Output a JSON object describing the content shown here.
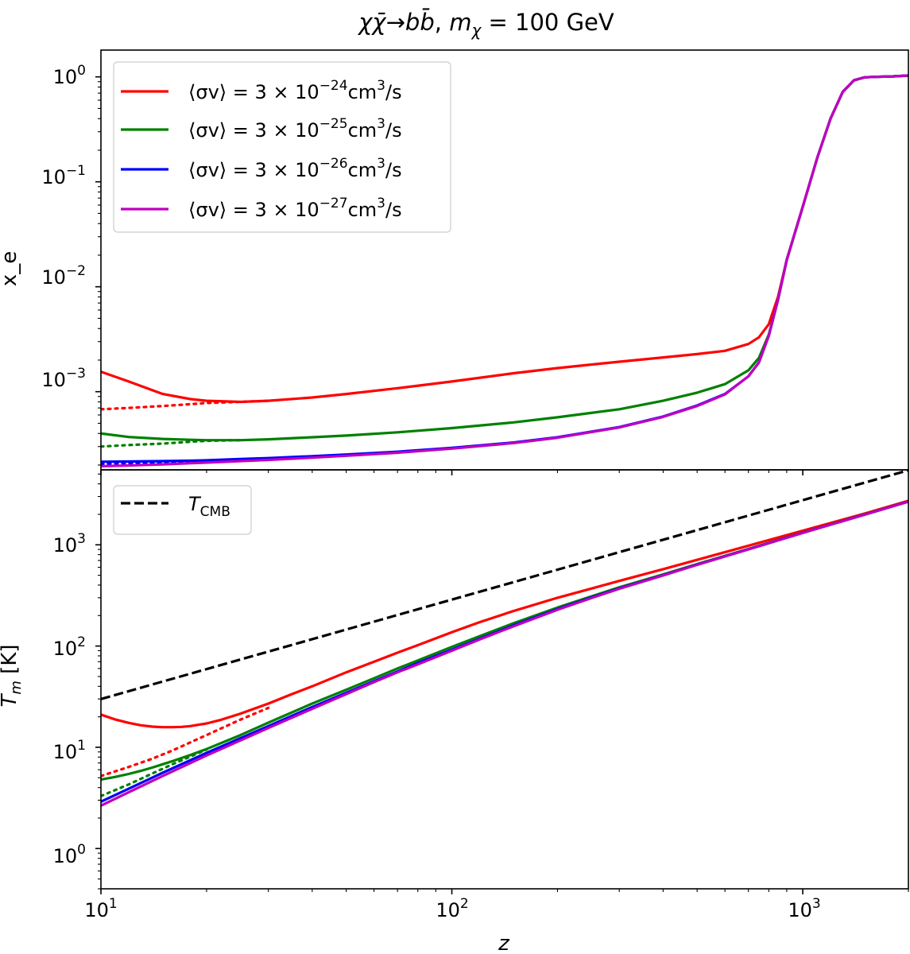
{
  "figure": {
    "title_parts": [
      "χ",
      "χ̄",
      "→",
      "b",
      "b̄",
      ", ",
      "m",
      "χ",
      " = 100 GeV"
    ]
  },
  "chart_data": [
    {
      "type": "line",
      "panel": "top",
      "xscale": "log",
      "yscale": "log",
      "xlim": [
        10,
        2000
      ],
      "ylim": [
        0.00018,
        1.8
      ],
      "ylabel": "x_e",
      "yticks": [
        0.001,
        0.01,
        0.1,
        1
      ],
      "ytick_labels": [
        {
          "base": "10",
          "exp": "−3"
        },
        {
          "base": "10",
          "exp": "−2"
        },
        {
          "base": "10",
          "exp": "−1"
        },
        {
          "base": "10",
          "exp": "0"
        }
      ],
      "legend": {
        "position": "top-left",
        "entries": [
          {
            "color": "#ff0000",
            "prefix": "⟨σv⟩ = 3 × 10",
            "exp": "−24",
            "unit": "cm",
            "unit_exp": "3",
            "suffix": "/s"
          },
          {
            "color": "#008000",
            "prefix": "⟨σv⟩ = 3 × 10",
            "exp": "−25",
            "unit": "cm",
            "unit_exp": "3",
            "suffix": "/s"
          },
          {
            "color": "#0000ff",
            "prefix": "⟨σv⟩ = 3 × 10",
            "exp": "−26",
            "unit": "cm",
            "unit_exp": "3",
            "suffix": "/s"
          },
          {
            "color": "#bf00bf",
            "prefix": "⟨σv⟩ = 3 × 10",
            "exp": "−27",
            "unit": "cm",
            "unit_exp": "3",
            "suffix": "/s"
          }
        ]
      },
      "series": [
        {
          "color": "#ff0000",
          "style": "solid",
          "x": [
            10,
            12,
            15,
            18,
            20,
            25,
            30,
            40,
            50,
            70,
            100,
            150,
            200,
            300,
            400,
            500,
            600,
            700,
            750,
            800,
            850,
            900,
            1000,
            1100,
            1200,
            1300,
            1400,
            1500,
            1600,
            1800,
            2000
          ],
          "y": [
            0.00155,
            0.00125,
            0.00095,
            0.00085,
            0.00082,
            0.0008,
            0.00082,
            0.00088,
            0.00095,
            0.00108,
            0.00125,
            0.0015,
            0.00168,
            0.00193,
            0.00212,
            0.00228,
            0.00245,
            0.00285,
            0.0033,
            0.0044,
            0.008,
            0.018,
            0.058,
            0.17,
            0.4,
            0.72,
            0.93,
            0.99,
            1.0,
            1.01,
            1.03
          ]
        },
        {
          "color": "#ff0000",
          "style": "dotted",
          "x": [
            10,
            12,
            15,
            18,
            20,
            25,
            30
          ],
          "y": [
            0.00068,
            0.0007,
            0.00073,
            0.00076,
            0.00078,
            0.0008,
            0.00082
          ]
        },
        {
          "color": "#008000",
          "style": "solid",
          "x": [
            10,
            12,
            15,
            18,
            20,
            25,
            30,
            40,
            50,
            70,
            100,
            150,
            200,
            300,
            400,
            500,
            600,
            700,
            750,
            800,
            850,
            900,
            1000,
            1100,
            1200,
            1300,
            1400,
            1500,
            1600,
            1800,
            2000
          ],
          "y": [
            0.0004,
            0.00037,
            0.000355,
            0.000348,
            0.000345,
            0.000345,
            0.000352,
            0.000368,
            0.000382,
            0.00041,
            0.00045,
            0.00051,
            0.00057,
            0.00068,
            0.00082,
            0.00098,
            0.00118,
            0.0016,
            0.0021,
            0.0035,
            0.0075,
            0.018,
            0.058,
            0.17,
            0.4,
            0.72,
            0.93,
            0.99,
            1.0,
            1.01,
            1.03
          ]
        },
        {
          "color": "#008000",
          "style": "dotted",
          "x": [
            10,
            12,
            15,
            18,
            20,
            25
          ],
          "y": [
            0.0003,
            0.00031,
            0.00032,
            0.000333,
            0.00034,
            0.000345
          ]
        },
        {
          "color": "#0000ff",
          "style": "solid",
          "x": [
            10,
            12,
            15,
            18,
            20,
            25,
            30,
            40,
            50,
            70,
            100,
            150,
            200,
            300,
            400,
            500,
            600,
            700,
            750,
            800,
            850,
            900,
            1000,
            1100,
            1200,
            1300,
            1400,
            1500,
            1600,
            1800,
            2000
          ],
          "y": [
            0.000215,
            0.000216,
            0.000218,
            0.00022,
            0.000222,
            0.000228,
            0.000233,
            0.000243,
            0.000252,
            0.000268,
            0.000292,
            0.000328,
            0.000368,
            0.00046,
            0.00058,
            0.00074,
            0.00095,
            0.0014,
            0.0019,
            0.0034,
            0.0075,
            0.018,
            0.058,
            0.17,
            0.4,
            0.72,
            0.93,
            0.99,
            1.0,
            1.01,
            1.03
          ]
        },
        {
          "color": "#0000ff",
          "style": "dotted",
          "x": [
            10,
            12,
            15,
            18,
            20
          ],
          "y": [
            0.000205,
            0.000208,
            0.000212,
            0.000216,
            0.000218
          ]
        },
        {
          "color": "#bf00bf",
          "style": "solid",
          "x": [
            10,
            12,
            15,
            18,
            20,
            25,
            30,
            40,
            50,
            70,
            100,
            150,
            200,
            300,
            400,
            500,
            600,
            700,
            750,
            800,
            850,
            900,
            1000,
            1100,
            1200,
            1300,
            1400,
            1500,
            1600,
            1800,
            2000
          ],
          "y": [
            0.000195,
            0.000198,
            0.000203,
            0.000208,
            0.000211,
            0.000218,
            0.000224,
            0.000235,
            0.000245,
            0.000262,
            0.000287,
            0.000324,
            0.000364,
            0.000456,
            0.000575,
            0.00073,
            0.00094,
            0.0014,
            0.0019,
            0.0034,
            0.0075,
            0.018,
            0.058,
            0.17,
            0.4,
            0.72,
            0.93,
            0.99,
            1.0,
            1.01,
            1.03
          ]
        }
      ]
    },
    {
      "type": "line",
      "panel": "bottom",
      "xscale": "log",
      "yscale": "log",
      "xlim": [
        10,
        2000
      ],
      "ylim": [
        0.4,
        5500
      ],
      "xlabel": "z",
      "ylabel_main": "T",
      "ylabel_sub": "m",
      "ylabel_unit": " [K]",
      "xticks": [
        10,
        100,
        1000
      ],
      "xtick_labels": [
        {
          "base": "10",
          "exp": "1"
        },
        {
          "base": "10",
          "exp": "2"
        },
        {
          "base": "10",
          "exp": "3"
        }
      ],
      "yticks": [
        1,
        10,
        100,
        1000
      ],
      "ytick_labels": [
        {
          "base": "10",
          "exp": "0"
        },
        {
          "base": "10",
          "exp": "1"
        },
        {
          "base": "10",
          "exp": "2"
        },
        {
          "base": "10",
          "exp": "3"
        }
      ],
      "legend": {
        "position": "top-left",
        "entries": [
          {
            "color": "#000000",
            "style": "dashed",
            "main": "T",
            "sub": "CMB"
          }
        ]
      },
      "series": [
        {
          "color": "#000000",
          "style": "dashed",
          "name": "T_CMB",
          "x": [
            10,
            2000
          ],
          "y": [
            29.98,
            5452.5
          ]
        },
        {
          "color": "#ff0000",
          "style": "solid",
          "x": [
            10,
            11,
            12,
            13,
            14,
            15,
            16,
            17,
            18,
            20,
            22,
            25,
            30,
            35,
            40,
            50,
            60,
            70,
            80,
            100,
            120,
            150,
            200,
            250,
            300,
            400,
            500,
            700,
            1000,
            1500,
            2000
          ],
          "y": [
            21,
            18.8,
            17.4,
            16.5,
            16,
            15.8,
            15.8,
            15.9,
            16.2,
            17.2,
            18.7,
            21.5,
            27,
            33.5,
            40,
            55,
            70,
            86,
            102,
            137,
            172,
            222,
            300,
            370,
            440,
            575,
            710,
            980,
            1380,
            2030,
            2720
          ]
        },
        {
          "color": "#ff0000",
          "style": "dotted",
          "x": [
            10,
            12,
            14,
            16,
            18,
            20,
            25,
            30
          ],
          "y": [
            5.2,
            6.4,
            7.7,
            9.3,
            11.2,
            13.2,
            18.8,
            24.5
          ]
        },
        {
          "color": "#008000",
          "style": "solid",
          "x": [
            10,
            11,
            12,
            13,
            14,
            15,
            16,
            18,
            20,
            25,
            30,
            40,
            50,
            60,
            70,
            80,
            100,
            120,
            150,
            200,
            250,
            300,
            400,
            500,
            700,
            1000,
            1500,
            2000
          ],
          "y": [
            4.8,
            5.1,
            5.45,
            5.85,
            6.3,
            6.8,
            7.3,
            8.4,
            9.6,
            13.2,
            17.5,
            27,
            37,
            48,
            60,
            72,
            98,
            125,
            168,
            240,
            310,
            380,
            510,
            645,
            910,
            1320,
            1990,
            2680
          ]
        },
        {
          "color": "#008000",
          "style": "dotted",
          "x": [
            10,
            12,
            14,
            16,
            18,
            20
          ],
          "y": [
            3.3,
            4.3,
            5.5,
            6.8,
            8.1,
            9.5
          ]
        },
        {
          "color": "#0000ff",
          "style": "solid",
          "x": [
            10,
            12,
            15,
            20,
            25,
            30,
            40,
            50,
            60,
            70,
            80,
            100,
            120,
            150,
            200,
            250,
            300,
            400,
            500,
            700,
            1000,
            1500,
            2000
          ],
          "y": [
            2.9,
            3.9,
            5.6,
            8.8,
            12.3,
            16.2,
            25,
            34.5,
            45,
            56,
            68,
            92,
            118,
            160,
            232,
            302,
            372,
            502,
            638,
            905,
            1315,
            1985,
            2675
          ]
        },
        {
          "color": "#bf00bf",
          "style": "solid",
          "x": [
            10,
            12,
            15,
            20,
            25,
            30,
            40,
            50,
            60,
            70,
            80,
            100,
            120,
            150,
            200,
            250,
            300,
            400,
            500,
            700,
            1000,
            1500,
            2000
          ],
          "y": [
            2.65,
            3.6,
            5.2,
            8.3,
            11.7,
            15.5,
            24,
            33.5,
            44,
            55,
            66,
            90,
            116,
            157,
            228,
            298,
            368,
            498,
            634,
            900,
            1310,
            1980,
            2670
          ]
        }
      ]
    }
  ]
}
